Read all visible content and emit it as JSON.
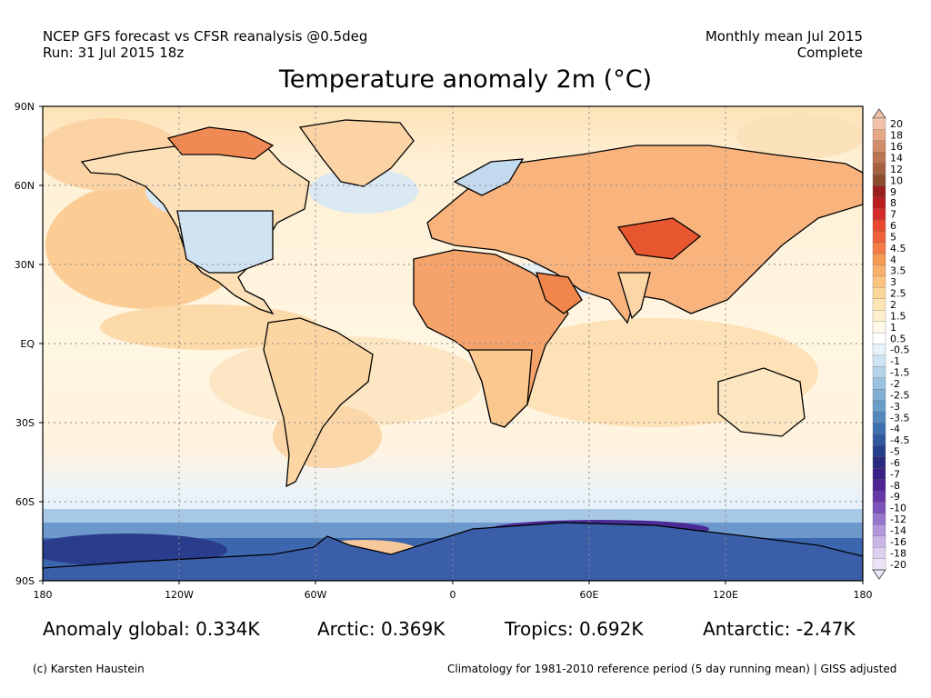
{
  "header": {
    "left_line1": "NCEP GFS forecast vs CFSR reanalysis @0.5deg",
    "left_line2": "Run: 31 Jul 2015 18z",
    "right_line1": "Monthly mean Jul 2015",
    "right_line2": "Complete"
  },
  "title": "Temperature anomaly 2m (°C)",
  "axes": {
    "lat_labels": [
      "90N",
      "60N",
      "30N",
      "EQ",
      "30S",
      "60S",
      "90S"
    ],
    "lon_labels": [
      "180",
      "120W",
      "60W",
      "0",
      "60E",
      "120E",
      "180"
    ]
  },
  "colorbar": {
    "labels": [
      "20",
      "18",
      "16",
      "14",
      "12",
      "10",
      "9",
      "8",
      "7",
      "6",
      "5",
      "4.5",
      "4",
      "3.5",
      "3",
      "2.5",
      "2",
      "1.5",
      "1",
      "0.5",
      "-0.5",
      "-1",
      "-1.5",
      "-2",
      "-2.5",
      "-3",
      "-3.5",
      "-4",
      "-4.5",
      "-5",
      "-6",
      "-7",
      "-8",
      "-9",
      "-10",
      "-12",
      "-14",
      "-16",
      "-18",
      "-20"
    ],
    "colors": [
      "#f2c3aa",
      "#e4a887",
      "#d18c6a",
      "#bb7552",
      "#a5613f",
      "#8a4d2f",
      "#9a1f1f",
      "#b81f1f",
      "#d72a2a",
      "#e8482e",
      "#f0603a",
      "#f47c46",
      "#f69a55",
      "#f8b06a",
      "#fbc581",
      "#fdd79a",
      "#fee6b4",
      "#fff1cd",
      "#fffaea",
      "#ffffff",
      "#e7f2fa",
      "#cfe4f3",
      "#b5d4ea",
      "#99c2df",
      "#81b0d4",
      "#6a9ec9",
      "#5388bd",
      "#3f70ae",
      "#2f5a9d",
      "#263f8a",
      "#2a2b7e",
      "#3a2187",
      "#4d2494",
      "#6637a6",
      "#7b53bb",
      "#9775cc",
      "#b297da",
      "#c9b6e6",
      "#ddd0f1",
      "#ece4f8"
    ]
  },
  "stats": {
    "global": "Anomaly global: 0.334K",
    "arctic": "Arctic: 0.369K",
    "tropics": "Tropics: 0.692K",
    "antarctic": "Antarctic: -2.47K"
  },
  "footer": {
    "left": "(c) Karsten Haustein",
    "right": "Climatology for 1981-2010 reference period (5 day running mean) | GISS adjusted"
  }
}
